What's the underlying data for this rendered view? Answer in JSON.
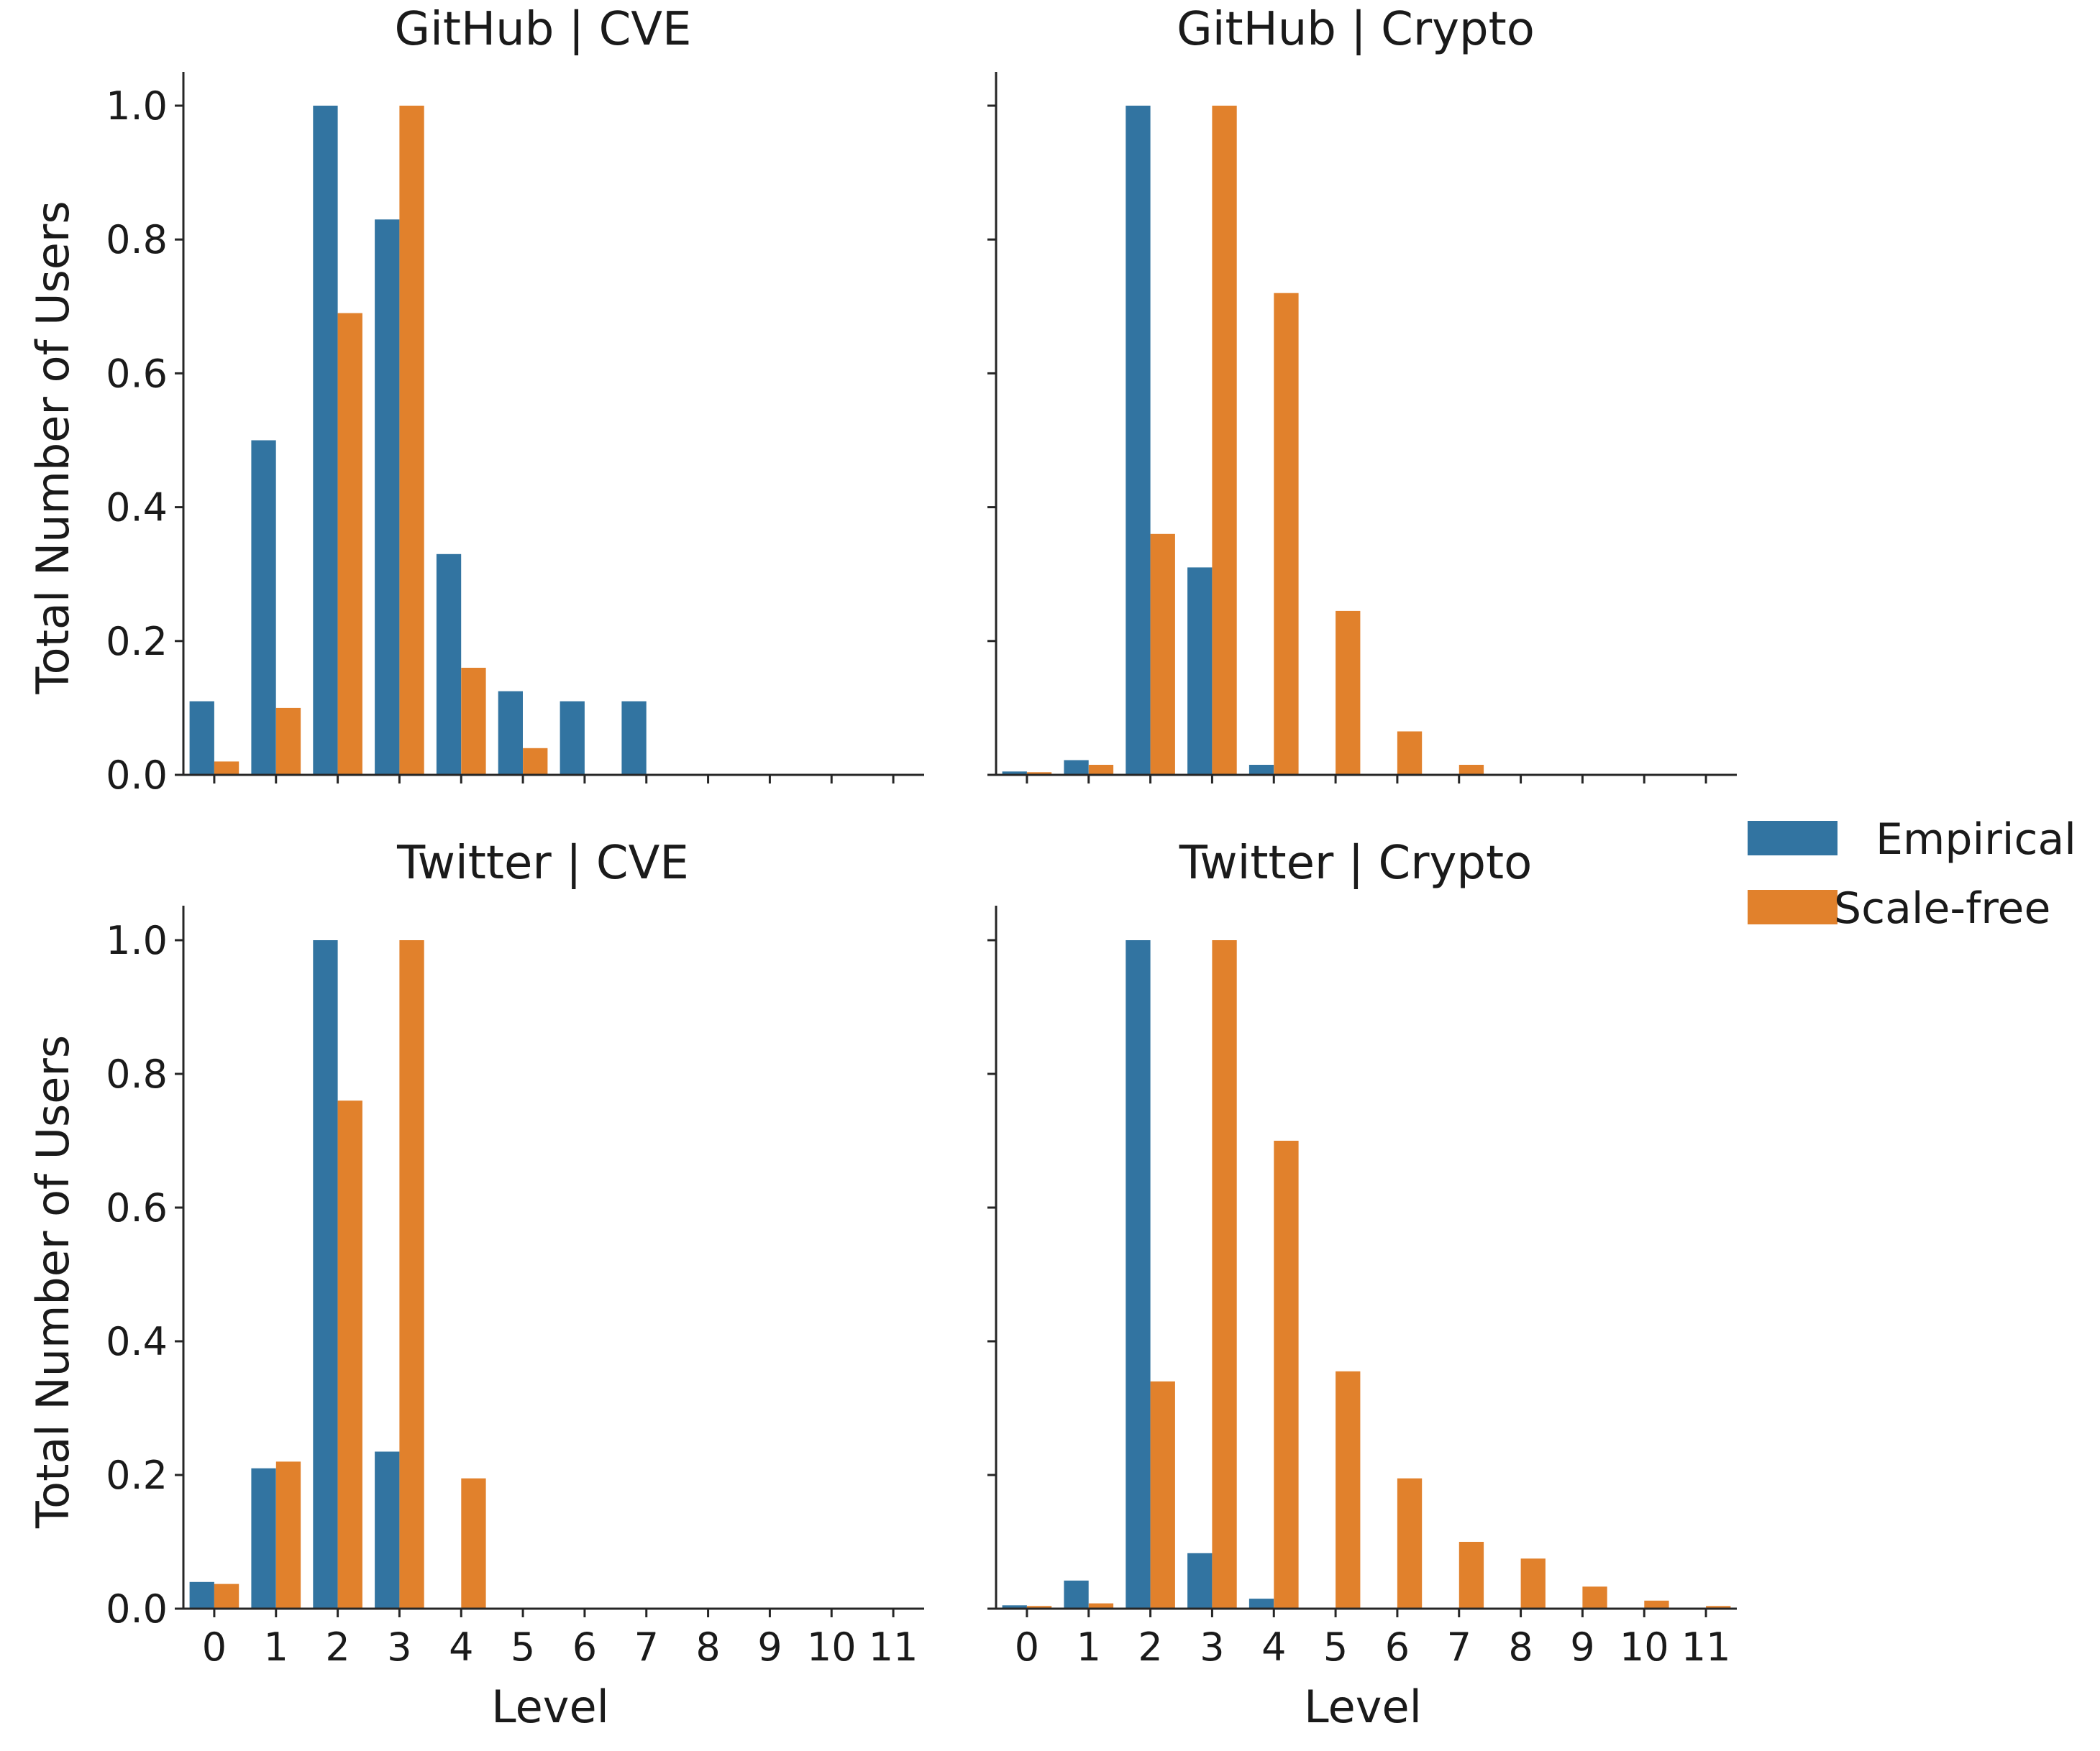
{
  "chart_data": [
    {
      "type": "bar",
      "title": "GitHub | CVE",
      "xlabel": "",
      "ylabel": "Total Number of Users",
      "categories": [
        "0",
        "1",
        "2",
        "3",
        "4",
        "5",
        "6",
        "7",
        "8",
        "9",
        "10",
        "11"
      ],
      "ylim": [
        0,
        1.05
      ],
      "yticks": [
        "0.0",
        "0.2",
        "0.4",
        "0.6",
        "0.8",
        "1.0"
      ],
      "series": [
        {
          "name": "Empirical",
          "values": [
            0.11,
            0.5,
            1.0,
            0.83,
            0.33,
            0.125,
            0.11,
            0.11,
            0,
            0,
            0,
            0
          ]
        },
        {
          "name": "Scale-free",
          "values": [
            0.02,
            0.1,
            0.69,
            1.0,
            0.16,
            0.04,
            0,
            0,
            0,
            0,
            0,
            0
          ]
        }
      ]
    },
    {
      "type": "bar",
      "title": "GitHub | Crypto",
      "xlabel": "",
      "ylabel": "",
      "categories": [
        "0",
        "1",
        "2",
        "3",
        "4",
        "5",
        "6",
        "7",
        "8",
        "9",
        "10",
        "11"
      ],
      "ylim": [
        0,
        1.05
      ],
      "yticks": [
        "0.0",
        "0.2",
        "0.4",
        "0.6",
        "0.8",
        "1.0"
      ],
      "series": [
        {
          "name": "Empirical",
          "values": [
            0.005,
            0.022,
            1.0,
            0.31,
            0.015,
            0,
            0,
            0,
            0,
            0,
            0,
            0
          ]
        },
        {
          "name": "Scale-free",
          "values": [
            0.004,
            0.015,
            0.36,
            1.0,
            0.72,
            0.245,
            0.065,
            0.015,
            0,
            0,
            0,
            0
          ]
        }
      ]
    },
    {
      "type": "bar",
      "title": "Twitter | CVE",
      "xlabel": "Level",
      "ylabel": "Total Number of Users",
      "categories": [
        "0",
        "1",
        "2",
        "3",
        "4",
        "5",
        "6",
        "7",
        "8",
        "9",
        "10",
        "11"
      ],
      "ylim": [
        0,
        1.05
      ],
      "yticks": [
        "0.0",
        "0.2",
        "0.4",
        "0.6",
        "0.8",
        "1.0"
      ],
      "series": [
        {
          "name": "Empirical",
          "values": [
            0.04,
            0.21,
            1.0,
            0.235,
            0,
            0,
            0,
            0,
            0,
            0,
            0,
            0
          ]
        },
        {
          "name": "Scale-free",
          "values": [
            0.037,
            0.22,
            0.76,
            1.0,
            0.195,
            0,
            0,
            0,
            0,
            0,
            0,
            0
          ]
        }
      ]
    },
    {
      "type": "bar",
      "title": "Twitter | Crypto",
      "xlabel": "Level",
      "ylabel": "",
      "categories": [
        "0",
        "1",
        "2",
        "3",
        "4",
        "5",
        "6",
        "7",
        "8",
        "9",
        "10",
        "11"
      ],
      "ylim": [
        0,
        1.05
      ],
      "yticks": [
        "0.0",
        "0.2",
        "0.4",
        "0.6",
        "0.8",
        "1.0"
      ],
      "series": [
        {
          "name": "Empirical",
          "values": [
            0.005,
            0.042,
            1.0,
            0.083,
            0.015,
            0,
            0,
            0,
            0,
            0,
            0,
            0
          ]
        },
        {
          "name": "Scale-free",
          "values": [
            0.004,
            0.008,
            0.34,
            1.0,
            0.7,
            0.355,
            0.195,
            0.1,
            0.075,
            0.033,
            0.012,
            0.004
          ]
        }
      ]
    }
  ],
  "legend": {
    "placement": "right",
    "items": [
      {
        "label": "Empirical",
        "color": "#3274a1"
      },
      {
        "label": "Scale-free",
        "color": "#e1812c"
      }
    ]
  },
  "colors": {
    "empirical": "#3274a1",
    "scale_free": "#e1812c",
    "axis": "#262626"
  }
}
